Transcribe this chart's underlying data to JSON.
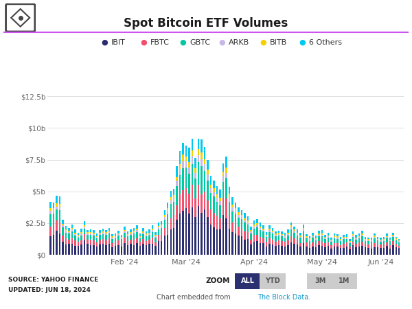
{
  "title": "Spot Bitcoin ETF Volumes",
  "colors": {
    "IBIT": "#2b2d6e",
    "FBTC": "#f0506e",
    "GBTC": "#00c8a0",
    "ARKB": "#c8b8e8",
    "BITB": "#f5d000",
    "6 Others": "#00c8f0"
  },
  "legend_order": [
    "IBIT",
    "FBTC",
    "GBTC",
    "ARKB",
    "BITB",
    "6 Others"
  ],
  "ytick_labels": [
    "$0",
    "$2.5b",
    "$5b",
    "$7.5b",
    "$10b",
    "$12.5b"
  ],
  "ytick_vals": [
    0,
    2.5,
    5.0,
    7.5,
    10.0,
    12.5
  ],
  "xtick_labels": [
    "Feb '24",
    "Mar '24",
    "Apr '24",
    "May '24",
    "Jun '24"
  ],
  "source_text": "SOURCE: YAHOO FINANCE\nUPDATED: JUN 18, 2024",
  "zoom_buttons": [
    "ALL",
    "YTD",
    "",
    "3M",
    "1M"
  ],
  "background_color": "#ffffff",
  "purple_line_color": "#cc55ee",
  "grid_color": "#e0e0e0",
  "fractions": {
    "IBIT": 0.4,
    "FBTC": 0.18,
    "GBTC": 0.2,
    "ARKB": 0.06,
    "BITB": 0.05,
    "6 Others": 0.11
  }
}
